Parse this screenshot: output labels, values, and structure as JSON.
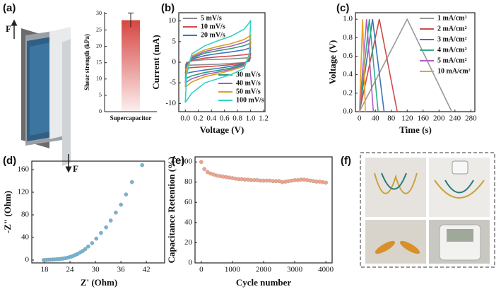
{
  "chart_data": [
    {
      "type": "bar",
      "label": "(a)",
      "annotations": [
        "F",
        "F"
      ],
      "ylabel": "Shear strength (kPa)",
      "categories": [
        "Supercapacitor"
      ],
      "values": [
        28
      ],
      "errors": [
        2.2
      ],
      "color": "#d64541",
      "ylim": [
        0,
        30.5
      ],
      "yticks": [
        0,
        5,
        10,
        15,
        20,
        25,
        30
      ]
    },
    {
      "type": "line",
      "label": "(b)",
      "xlabel": "Voltage (V)",
      "ylabel": "Current (mA)",
      "x": [
        0,
        0.02,
        0.1,
        0.3,
        0.5,
        0.7,
        0.9,
        0.98,
        1,
        0.98,
        0.9,
        0.7,
        0.5,
        0.3,
        0.1,
        0.02,
        0
      ],
      "series": [
        {
          "name": "5 mV/s",
          "color": "#8c8c8c",
          "values": [
            -0.8,
            -0.1,
            0.3,
            0.6,
            0.7,
            0.8,
            1,
            1.1,
            1.1,
            0.2,
            -0.1,
            -0.3,
            -0.5,
            -0.6,
            -0.7,
            -0.8,
            -0.8
          ]
        },
        {
          "name": "10 mV/s",
          "color": "#d04a4a",
          "values": [
            -1.5,
            -0.3,
            0.5,
            1,
            1.3,
            1.5,
            1.8,
            2,
            2.1,
            0.4,
            -0.2,
            -0.6,
            -0.9,
            -1.1,
            -1.3,
            -1.5,
            -1.5
          ]
        },
        {
          "name": "20 mV/s",
          "color": "#3f74b5",
          "values": [
            -2.8,
            -0.6,
            0.8,
            1.6,
            2.1,
            2.5,
            3,
            3.4,
            3.5,
            0.7,
            -0.4,
            -1,
            -1.5,
            -1.9,
            -2.4,
            -2.7,
            -2.8
          ]
        },
        {
          "name": "30 mV/s",
          "color": "#2e9a7f",
          "values": [
            -4,
            -1,
            1,
            2.2,
            2.8,
            3.3,
            4,
            4.5,
            4.7,
            1,
            -0.6,
            -1.4,
            -2,
            -2.5,
            -3.3,
            -3.9,
            -4
          ]
        },
        {
          "name": "40 mV/s",
          "color": "#a25fb8",
          "values": [
            -5,
            -1.2,
            1.2,
            2.6,
            3.3,
            3.9,
            4.8,
            5.4,
            5.6,
            1.2,
            -0.8,
            -1.7,
            -2.4,
            -3,
            -4,
            -4.8,
            -5
          ]
        },
        {
          "name": "50 mV/s",
          "color": "#d9a21a",
          "values": [
            -6,
            -1.5,
            1.5,
            3,
            3.8,
            4.5,
            5.5,
            6.3,
            6.6,
            1.5,
            -1,
            -2,
            -2.8,
            -3.5,
            -4.8,
            -5.8,
            -6
          ]
        },
        {
          "name": "100 mV/s",
          "color": "#35d0c8",
          "values": [
            -9.8,
            -3,
            2,
            4,
            5.2,
            6.3,
            8,
            9.6,
            10.2,
            2,
            -1.5,
            -3,
            -4,
            -5,
            -7.5,
            -9.3,
            -9.8
          ]
        }
      ],
      "xlim": [
        -0.1,
        1.22
      ],
      "xticks": [
        {
          "value": 0,
          "label": "0.0"
        },
        0.2,
        0.4,
        0.6,
        0.8,
        {
          "value": 1,
          "label": "1.0"
        },
        1.2
      ],
      "ylim": [
        -12,
        12
      ],
      "yticks": [
        -10,
        -5,
        0,
        5,
        10
      ]
    },
    {
      "type": "line",
      "label": "(c)",
      "xlabel": "Time (s)",
      "ylabel": "Voltage (V)",
      "legend": "upper right",
      "series": [
        {
          "name": "1 mA/cm²",
          "color": "#999999",
          "x": [
            0,
            120,
            232
          ],
          "values": [
            0,
            1,
            0
          ]
        },
        {
          "name": "2 mA/cm²",
          "color": "#d04a4a",
          "x": [
            0,
            50,
            95
          ],
          "values": [
            0,
            1,
            0
          ]
        },
        {
          "name": "3 mA/cm²",
          "color": "#3f74b5",
          "x": [
            0,
            33,
            62
          ],
          "values": [
            0,
            1,
            0
          ]
        },
        {
          "name": "4 mA/cm²",
          "color": "#2eaa8a",
          "x": [
            0,
            25,
            47
          ],
          "values": [
            0,
            1,
            0
          ]
        },
        {
          "name": "5 mA/cm²",
          "color": "#b05fc0",
          "x": [
            0,
            18,
            35
          ],
          "values": [
            0,
            1,
            0
          ]
        },
        {
          "name": "10 mA/cm²",
          "color": "#f0a020",
          "x": [
            0,
            8,
            15
          ],
          "values": [
            0,
            1,
            0
          ]
        }
      ],
      "xlim": [
        -10,
        290
      ],
      "xticks": [
        0,
        40,
        80,
        120,
        160,
        200,
        240,
        280
      ],
      "ylim": [
        0,
        1.07
      ],
      "yticks": [
        {
          "value": 0,
          "label": "0.0"
        },
        0.2,
        0.4,
        0.6,
        0.8,
        {
          "value": 1,
          "label": "1.0"
        }
      ]
    },
    {
      "type": "scatter",
      "label": "(d)",
      "xlabel": "Z' (Ohm)",
      "ylabel": "-Z\" (Ohm)",
      "color": "#6fb7d8",
      "x": [
        17.8,
        18.3,
        18.8,
        19.3,
        19.8,
        20.3,
        20.8,
        21.3,
        21.8,
        22.3,
        22.8,
        23.3,
        23.8,
        24.3,
        24.8,
        25.3,
        25.8,
        26.4,
        27,
        27.6,
        28.3,
        29.2,
        30.2,
        31.3,
        32.5,
        33.6,
        34.8,
        36,
        37.2,
        38.6,
        41
      ],
      "values": [
        0,
        0.3,
        0.5,
        0.7,
        0.9,
        1.1,
        1.4,
        1.7,
        2.1,
        2.6,
        3.2,
        4,
        5,
        6.2,
        7.6,
        9.2,
        11,
        13.5,
        16,
        19.5,
        24,
        30,
        38,
        48,
        58,
        70,
        84,
        98,
        116,
        138,
        168
      ],
      "xlim": [
        15,
        46.3
      ],
      "xticks": [
        18,
        24,
        30,
        36,
        42
      ],
      "ylim": [
        -5,
        175
      ],
      "yticks": [
        0,
        40,
        80,
        120,
        160
      ]
    },
    {
      "type": "scatter",
      "label": "(e)",
      "xlabel": "Cycle number",
      "ylabel": "Capacitance Retention (%)",
      "color": "#f4a38a",
      "x": [
        0,
        100,
        200,
        300,
        400,
        500,
        600,
        700,
        800,
        900,
        1000,
        1100,
        1200,
        1300,
        1400,
        1500,
        1600,
        1700,
        1800,
        1900,
        2000,
        2100,
        2200,
        2300,
        2400,
        2500,
        2600,
        2700,
        2800,
        2900,
        3000,
        3100,
        3200,
        3300,
        3400,
        3500,
        3600,
        3700,
        3800,
        3900,
        4000
      ],
      "values": [
        100,
        93,
        90,
        88.5,
        87.5,
        86.5,
        86,
        85.5,
        85,
        84.5,
        84,
        83.5,
        83,
        83,
        82.5,
        82.5,
        82,
        82,
        82,
        81.5,
        81.5,
        81.5,
        81.5,
        81,
        81,
        81,
        80,
        80.5,
        81,
        81.5,
        82,
        82,
        82.5,
        82.5,
        82,
        81.5,
        81,
        80.5,
        80.5,
        80,
        79.5
      ],
      "xlim": [
        -200,
        4200
      ],
      "xticks": [
        0,
        1000,
        2000,
        3000,
        4000
      ],
      "ylim": [
        0,
        105
      ],
      "yticks": [
        0,
        20,
        40,
        60,
        80,
        100
      ]
    },
    {
      "type": "photo",
      "label": "(f)"
    }
  ]
}
